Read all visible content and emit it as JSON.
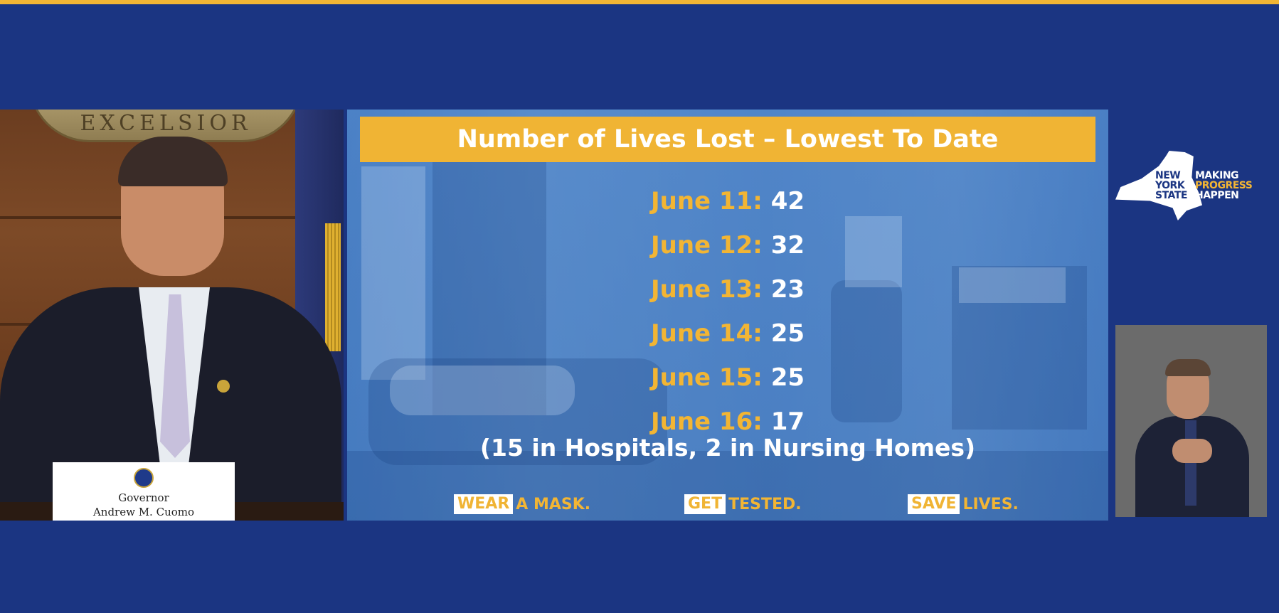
{
  "slide": {
    "title": "Number of Lives Lost – Lowest To Date",
    "entries": [
      {
        "date": "June 11:",
        "value": "42"
      },
      {
        "date": "June 12:",
        "value": "32"
      },
      {
        "date": "June 13:",
        "value": "23"
      },
      {
        "date": "June 14:",
        "value": "25"
      },
      {
        "date": "June 15:",
        "value": "25"
      },
      {
        "date": "June 16:",
        "value": "17"
      }
    ],
    "breakdown": "(15 in Hospitals, 2 in Nursing Homes)",
    "footer": [
      {
        "highlight": "WEAR",
        "rest": "A MASK."
      },
      {
        "highlight": "GET",
        "rest": "TESTED."
      },
      {
        "highlight": "SAVE",
        "rest": "LIVES."
      }
    ]
  },
  "nameplate": {
    "line1": "Governor",
    "line2": "Andrew M. Cuomo"
  },
  "seal": {
    "text": "EXCELSIOR"
  },
  "logo": {
    "left": [
      "NEW",
      "YORK",
      "STATE"
    ],
    "right": [
      "MAKING",
      "PROGRESS",
      "HAPPEN"
    ]
  },
  "colors": {
    "background": "#1b3582",
    "accent": "#f2b534",
    "banner": "#f0b434"
  }
}
